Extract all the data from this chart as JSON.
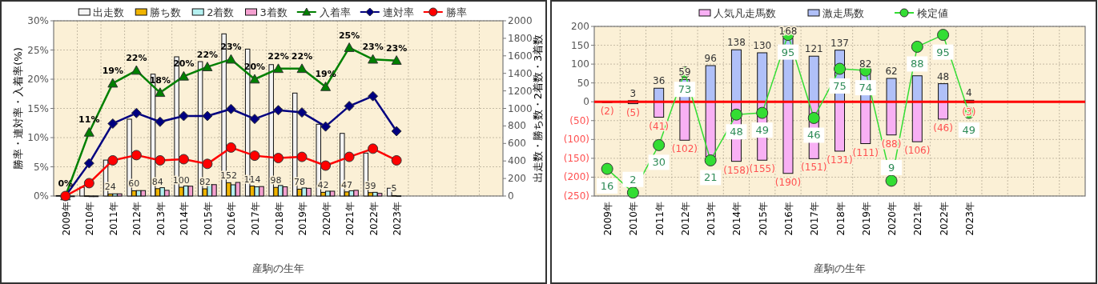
{
  "chart_data": [
    {
      "type": "bar",
      "categories": [
        "2009年",
        "2010年",
        "2011年",
        "2012年",
        "2013年",
        "2014年",
        "2015年",
        "2016年",
        "2017年",
        "2018年",
        "2019年",
        "2020年",
        "2021年",
        "2022年",
        "2023年",
        null,
        null,
        null,
        null
      ],
      "xlabel": "産駒の生年",
      "ylabel": "勝率・連対率・入着率(%)",
      "y2label": "出走数・勝ち数・2着数・3着数",
      "ylim": [
        0,
        30
      ],
      "yticks": [
        {
          "value": 0,
          "label": "0%"
        },
        {
          "value": 5,
          "label": "5%"
        },
        {
          "value": 10,
          "label": "10%"
        },
        {
          "value": 15,
          "label": "15%"
        },
        {
          "value": 20,
          "label": "20%"
        },
        {
          "value": 25,
          "label": "25%"
        },
        {
          "value": 30,
          "label": "30%"
        }
      ],
      "y2lim": [
        0,
        2000
      ],
      "y2ticks": [
        0,
        200,
        400,
        600,
        800,
        1000,
        1200,
        1400,
        1600,
        1800,
        2000
      ],
      "grid": true,
      "legend": "top",
      "series": [
        {
          "name": "出走数",
          "axis": "y2",
          "color": "#f4f4f4",
          "values": [
            5,
            100,
            410,
            877,
            1391,
            1589,
            1534,
            1851,
            1677,
            1500,
            1175,
            819,
            715,
            490,
            89,
            null,
            null,
            null,
            null
          ]
        },
        {
          "name": "勝ち数",
          "axis": "y2",
          "color": "#f0b400",
          "values": [
            0,
            2,
            24,
            60,
            84,
            100,
            82,
            152,
            114,
            98,
            78,
            42,
            47,
            39,
            5,
            null,
            null,
            null,
            null
          ],
          "value_labels": [
            null,
            null,
            "24",
            "60",
            "84",
            "100",
            "82",
            "152",
            "114",
            "98",
            "78",
            "42",
            "47",
            "39",
            "5",
            null,
            null,
            null,
            null
          ]
        },
        {
          "name": "2着数",
          "axis": "y2",
          "color": "#b4f0f0",
          "values": [
            0,
            0,
            25,
            62,
            95,
            115,
            130,
            128,
            105,
            120,
            92,
            55,
            60,
            42,
            2,
            null,
            null,
            null,
            null
          ]
        },
        {
          "name": "3着数",
          "axis": "y2",
          "color": "#f4a0d0",
          "values": [
            0,
            0,
            25,
            62,
            65,
            112,
            130,
            155,
            108,
            105,
            88,
            55,
            65,
            30,
            null,
            null,
            null,
            null,
            null
          ]
        },
        {
          "name": "入着率",
          "type": "line",
          "color": "#008000",
          "marker": "triangle",
          "values": [
            0,
            10.9,
            19.3,
            21.5,
            17.7,
            20.5,
            22.1,
            23.4,
            20.0,
            21.8,
            21.8,
            18.7,
            25.4,
            23.4,
            23.2,
            null,
            null,
            null,
            null
          ],
          "value_labels": [
            "0%",
            "11%",
            "19%",
            "22%",
            "18%",
            "20%",
            "22%",
            "23%",
            "20%",
            "22%",
            "22%",
            "19%",
            "25%",
            "23%",
            "23%",
            null,
            null,
            null,
            null
          ]
        },
        {
          "name": "連対率",
          "type": "line",
          "color": "#000080",
          "marker": "diamond",
          "values": [
            0,
            5.6,
            12.4,
            14.2,
            12.7,
            13.7,
            13.7,
            14.9,
            13.2,
            14.7,
            14.3,
            11.9,
            15.4,
            17.1,
            11.1,
            null,
            null,
            null,
            null
          ]
        },
        {
          "name": "勝率",
          "type": "line",
          "color": "#ff0000",
          "marker": "circle",
          "values": [
            0,
            2.2,
            6.1,
            7.0,
            6.1,
            6.3,
            5.5,
            8.3,
            6.9,
            6.5,
            6.7,
            5.2,
            6.7,
            8.1,
            6.1,
            null,
            null,
            null,
            null
          ]
        }
      ]
    },
    {
      "type": "bar",
      "categories": [
        "2009年",
        "2010年",
        "2011年",
        "2012年",
        "2013年",
        "2014年",
        "2015年",
        "2016年",
        "2017年",
        "2018年",
        "2019年",
        "2020年",
        "2021年",
        "2022年",
        "2023年",
        null,
        null,
        null,
        null
      ],
      "xlabel": "産駒の生年",
      "ylim": [
        -250,
        200
      ],
      "yticks": [
        {
          "value": -250,
          "label": "(250)"
        },
        {
          "value": -200,
          "label": "(200)"
        },
        {
          "value": -150,
          "label": "(150)"
        },
        {
          "value": -100,
          "label": "(100)"
        },
        {
          "value": -50,
          "label": "(50)"
        },
        0,
        50,
        100,
        150,
        200
      ],
      "y2lim": [
        0,
        100
      ],
      "tick_labels": "xy",
      "grid": true,
      "legend": "top",
      "stacked": true,
      "ref_lines": [
        {
          "axis": "y",
          "value": 0,
          "color": "#ff0000"
        }
      ],
      "series": [
        {
          "name": "人気凡走馬数",
          "color": "#f8b0f4",
          "values": [
            -2,
            -5,
            -41,
            -102,
            -146,
            -158,
            -155,
            -190,
            -151,
            -131,
            -111,
            -88,
            -106,
            -46,
            -3,
            null,
            null,
            null,
            null
          ],
          "value_labels": [
            "(2)",
            "(5)",
            "(41)",
            "(102)",
            null,
            "(158)",
            "(155)",
            "(190)",
            "(151)",
            "(131)",
            "(111)",
            "(88)",
            "(106)",
            "(46)",
            "(3)",
            null,
            null,
            null,
            null
          ]
        },
        {
          "name": "激走馬数",
          "color": "#b0c0f8",
          "values": [
            null,
            3,
            36,
            59,
            96,
            138,
            130,
            168,
            121,
            137,
            82,
            62,
            69,
            48,
            4,
            null,
            null,
            null,
            null
          ],
          "value_labels": [
            null,
            "3",
            "36",
            "59",
            "96",
            "138",
            "130",
            "168",
            "121",
            "137",
            "82",
            "62",
            null,
            "48",
            "4",
            null,
            null,
            null,
            null
          ]
        },
        {
          "name": "検定値",
          "type": "line",
          "axis": "y2",
          "color": "#33dd33",
          "marker": "circle",
          "values": [
            16,
            2,
            30,
            73,
            21,
            48,
            49,
            95,
            46,
            75,
            74,
            9,
            88,
            95,
            49,
            null,
            null,
            null,
            null
          ],
          "value_labels": [
            "16",
            "2",
            "30",
            "73",
            "21",
            "48",
            "49",
            "95",
            "46",
            "75",
            "74",
            "9",
            "88",
            "95",
            "49",
            null,
            null,
            null,
            null
          ]
        }
      ]
    }
  ]
}
